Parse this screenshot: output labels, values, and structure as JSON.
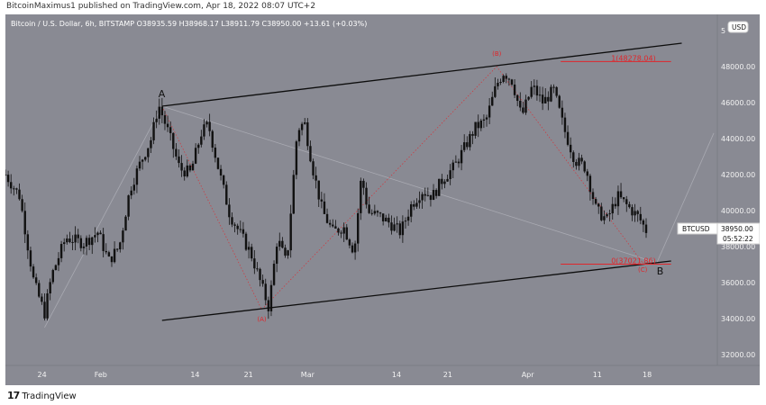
{
  "header": {
    "published_text": "BitcoinMaximus1 published on TradingView.com, Apr 18, 2022 08:07 UTC+2"
  },
  "symbol_line": "Bitcoin / U.S. Dollar, 6h, BITSTAMP  O38935.59  H38968.17  L38911.79  C38950.00  +13.61 (+0.03%)",
  "footer": {
    "logo_text": "TradingView",
    "logo_mark": "17"
  },
  "colors": {
    "background": "#898a93",
    "candle": "#111111",
    "channel": "#0d0d0d",
    "annotation_red": "#e0262b",
    "trend_grey": "#a9aab2"
  },
  "chart_data": {
    "type": "candlestick",
    "symbol": "BTCUSD",
    "interval": "6h",
    "ylim": [
      32000,
      50000
    ],
    "y_ticks": [
      32000,
      34000,
      36000,
      38000,
      40000,
      42000,
      44000,
      46000,
      48000
    ],
    "y_tick_labels": [
      "32000.00",
      "34000.00",
      "36000.00",
      "38000.00",
      "40000.00",
      "42000.00",
      "44000.00",
      "46000.00",
      "48000.00"
    ],
    "y_top_partial_label": "5",
    "currency_badge": "USD",
    "x_ticks": [
      "24",
      "Feb",
      "14",
      "21",
      "Mar",
      "14",
      "21",
      "Apr",
      "11",
      "18"
    ],
    "last_price_label": "38950.00",
    "countdown_label": "05:52:22",
    "price_tag_symbol": "BTCUSD",
    "price_path": [
      [
        0,
        42000
      ],
      [
        0.02,
        40800
      ],
      [
        0.04,
        36000
      ],
      [
        0.055,
        34300
      ],
      [
        0.065,
        36400
      ],
      [
        0.085,
        38500
      ],
      [
        0.11,
        38200
      ],
      [
        0.13,
        38800
      ],
      [
        0.145,
        37200
      ],
      [
        0.16,
        38000
      ],
      [
        0.175,
        41200
      ],
      [
        0.19,
        42700
      ],
      [
        0.205,
        44000
      ],
      [
        0.215,
        45900
      ],
      [
        0.23,
        44200
      ],
      [
        0.245,
        42300
      ],
      [
        0.26,
        42100
      ],
      [
        0.275,
        44300
      ],
      [
        0.285,
        44800
      ],
      [
        0.3,
        42200
      ],
      [
        0.315,
        39800
      ],
      [
        0.33,
        38700
      ],
      [
        0.345,
        37600
      ],
      [
        0.36,
        35800
      ],
      [
        0.37,
        34600
      ],
      [
        0.382,
        38500
      ],
      [
        0.395,
        37000
      ],
      [
        0.41,
        44500
      ],
      [
        0.42,
        44900
      ],
      [
        0.432,
        42300
      ],
      [
        0.445,
        40000
      ],
      [
        0.46,
        38800
      ],
      [
        0.475,
        39100
      ],
      [
        0.49,
        37700
      ],
      [
        0.5,
        41900
      ],
      [
        0.51,
        39900
      ],
      [
        0.525,
        39700
      ],
      [
        0.54,
        39300
      ],
      [
        0.555,
        38800
      ],
      [
        0.57,
        40300
      ],
      [
        0.585,
        41100
      ],
      [
        0.6,
        40800
      ],
      [
        0.615,
        41800
      ],
      [
        0.63,
        42400
      ],
      [
        0.645,
        43500
      ],
      [
        0.66,
        44600
      ],
      [
        0.675,
        45000
      ],
      [
        0.69,
        47000
      ],
      [
        0.7,
        47700
      ],
      [
        0.712,
        47200
      ],
      [
        0.725,
        45200
      ],
      [
        0.74,
        46900
      ],
      [
        0.755,
        46000
      ],
      [
        0.77,
        46700
      ],
      [
        0.785,
        44500
      ],
      [
        0.8,
        42800
      ],
      [
        0.815,
        42400
      ],
      [
        0.83,
        40000
      ],
      [
        0.845,
        39500
      ],
      [
        0.86,
        40800
      ],
      [
        0.875,
        40200
      ],
      [
        0.89,
        39600
      ],
      [
        0.9,
        38900
      ]
    ],
    "channel_upper": {
      "from": [
        0.22,
        45800
      ],
      "to": [
        0.95,
        49300
      ]
    },
    "channel_lower": {
      "from": [
        0.22,
        33900
      ],
      "to": [
        0.935,
        37200
      ]
    },
    "labels": [
      {
        "text": "A",
        "at": [
          0.22,
          46300
        ],
        "color": "dark"
      },
      {
        "text": "B",
        "at": [
          0.92,
          36450
        ],
        "color": "dark"
      },
      {
        "text": "(A)",
        "at": [
          0.36,
          33850
        ],
        "color": "red"
      },
      {
        "text": "(B)",
        "at": [
          0.69,
          48600
        ],
        "color": "red"
      },
      {
        "text": "(C)",
        "at": [
          0.895,
          36600
        ],
        "color": "red"
      }
    ],
    "fib_levels": [
      {
        "label": "1(48278.04)",
        "value": 48278.04,
        "from_x": 0.78,
        "to_x": 0.935
      },
      {
        "label": "0(37021.86)",
        "value": 37021.86,
        "from_x": 0.78,
        "to_x": 0.935
      }
    ],
    "red_dotted_path": [
      [
        0.22,
        45800
      ],
      [
        0.36,
        34500
      ],
      [
        0.69,
        48000
      ],
      [
        0.895,
        37100
      ]
    ],
    "grey_lines": [
      [
        [
          0.055,
          33500
        ],
        [
          0.22,
          45800
        ]
      ],
      [
        [
          0.22,
          45800
        ],
        [
          0.915,
          37100
        ]
      ],
      [
        [
          0.915,
          37100
        ],
        [
          0.995,
          44300
        ]
      ]
    ]
  }
}
